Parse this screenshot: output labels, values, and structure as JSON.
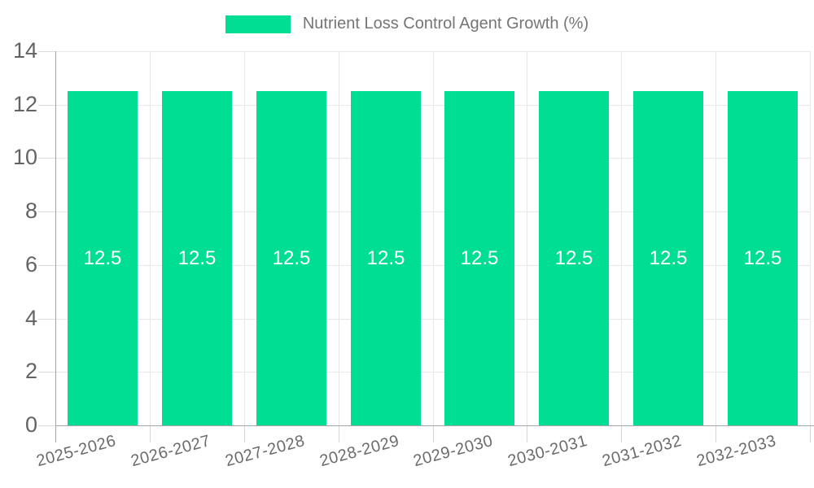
{
  "chart_data": {
    "type": "bar",
    "title": "",
    "legend": {
      "label": "Nutrient Loss Control Agent Growth (%)",
      "position": "top"
    },
    "categories": [
      "2025-2026",
      "2026-2027",
      "2027-2028",
      "2028-2029",
      "2029-2030",
      "2030-2031",
      "2031-2032",
      "2032-2033"
    ],
    "series": [
      {
        "name": "Nutrient Loss Control Agent Growth (%)",
        "values": [
          12.5,
          12.5,
          12.5,
          12.5,
          12.5,
          12.5,
          12.5,
          12.5
        ]
      }
    ],
    "bar_value_labels": [
      "12.5",
      "12.5",
      "12.5",
      "12.5",
      "12.5",
      "12.5",
      "12.5",
      "12.5"
    ],
    "xlabel": "",
    "ylabel": "",
    "ylim": [
      0,
      14
    ],
    "yticks": [
      0,
      2,
      4,
      6,
      8,
      10,
      12,
      14
    ],
    "grid": "horizontal-and-vertical",
    "x_label_rotation_deg": -15,
    "colors": {
      "bar": "#00DE94",
      "grid": "#e8e8e8",
      "axis": "#a6a6a6",
      "tick": "#d9d9d9",
      "y_tick_label": "#636363",
      "x_tick_label": "#6b6b6b",
      "legend_text": "#757575",
      "bar_label": "#ffffff",
      "background": "#ffffff"
    }
  }
}
